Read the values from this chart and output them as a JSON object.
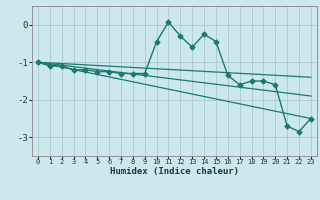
{
  "xlabel": "Humidex (Indice chaleur)",
  "background_color": "#cce8ed",
  "grid_color": "#aecdd4",
  "line_color": "#1a7a6e",
  "xlim": [
    -0.5,
    23.5
  ],
  "ylim": [
    -3.5,
    0.5
  ],
  "yticks": [
    0,
    -1,
    -2,
    -3
  ],
  "xticks": [
    0,
    1,
    2,
    3,
    4,
    5,
    6,
    7,
    8,
    9,
    10,
    11,
    12,
    13,
    14,
    15,
    16,
    17,
    18,
    19,
    20,
    21,
    22,
    23
  ],
  "series_main": {
    "x": [
      0,
      1,
      2,
      3,
      4,
      5,
      6,
      7,
      8,
      9,
      10,
      11,
      12,
      13,
      14,
      15,
      16,
      17,
      18,
      19,
      20,
      21,
      22,
      23
    ],
    "y": [
      -1.0,
      -1.1,
      -1.1,
      -1.2,
      -1.2,
      -1.25,
      -1.25,
      -1.3,
      -1.3,
      -1.3,
      -0.45,
      0.07,
      -0.3,
      -0.6,
      -0.25,
      -0.45,
      -1.35,
      -1.6,
      -1.5,
      -1.5,
      -1.6,
      -2.7,
      -2.85,
      -2.5
    ]
  },
  "series_lines": [
    {
      "x": [
        0,
        23
      ],
      "y": [
        -1.0,
        -1.4
      ]
    },
    {
      "x": [
        0,
        23
      ],
      "y": [
        -1.0,
        -1.9
      ]
    },
    {
      "x": [
        0,
        23
      ],
      "y": [
        -1.0,
        -2.5
      ]
    }
  ]
}
